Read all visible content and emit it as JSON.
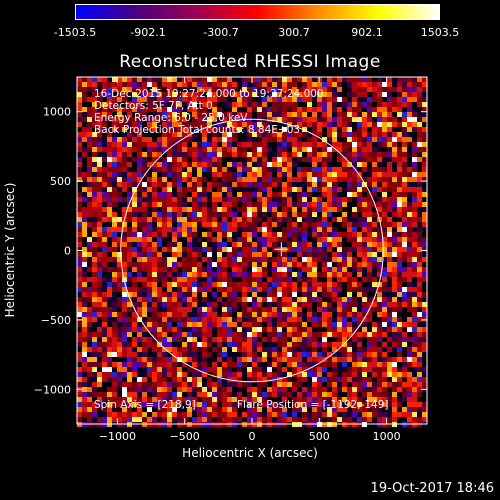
{
  "colorbar": {
    "ticks": [
      "-1503.5",
      "-902.1",
      "-300.7",
      "300.7",
      "902.1",
      "1503.5"
    ]
  },
  "title": "Reconstructed RHESSI Image",
  "annotations": {
    "line1": "16-Dec-2015 19:27:24.000 to 19:37:24.000",
    "line2": "Detectors: 5F 7F, Att 0",
    "line3": "Energy Range: 6.0 - 25.0 keV",
    "line4": "Back Projection    Total counts: 8.84E+03",
    "spin_axis": "Spin Axis = [218,9]",
    "flare_position": "Flare Position = [-1192,-149]"
  },
  "timestamp": "19-Oct-2017 18:46",
  "chart_data": {
    "type": "heatmap",
    "title": "Reconstructed RHESSI Image",
    "xlabel": "Heliocentric X (arcsec)",
    "ylabel": "Heliocentric Y (arcsec)",
    "xlim": [
      -1300,
      1300
    ],
    "ylim": [
      -1250,
      1250
    ],
    "x_ticks": [
      -1000,
      -500,
      0,
      500,
      1000
    ],
    "y_ticks": [
      -1000,
      -500,
      0,
      500,
      1000
    ],
    "color_range": [
      -1503.5,
      1503.5
    ],
    "colormap": [
      "#0000ff",
      "#4b0082",
      "#a00050",
      "#ff0000",
      "#ff8c00",
      "#ffff00",
      "#ffffff"
    ],
    "solar_limb_radius": 975,
    "cross_marker": [
      218,
      9
    ],
    "grid": false
  }
}
